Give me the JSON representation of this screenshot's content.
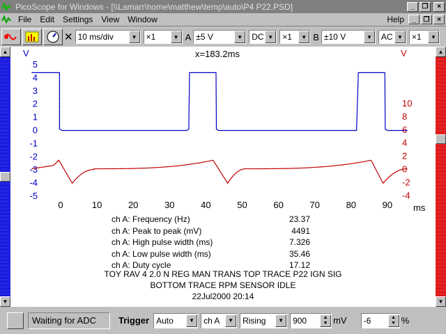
{
  "window": {
    "title": "PicoScope for Windows - [\\\\Lamarr\\home\\matthew\\temp\\auto\\P4  P22.PSD]",
    "minimize": "_",
    "restore": "❐",
    "close": "×"
  },
  "menu": {
    "file": "File",
    "edit": "Edit",
    "settings": "Settings",
    "view": "View",
    "window": "Window",
    "help": "Help"
  },
  "toolbar": {
    "timebase": "10 ms/div",
    "timebase_mult": "×1",
    "ch_a_label": "A",
    "ch_a_range": "±5 V",
    "ch_a_coupling": "DC",
    "ch_a_mult": "×1",
    "ch_b_label": "B",
    "ch_b_range": "±10 V",
    "ch_b_coupling": "AC",
    "ch_b_mult": "×1"
  },
  "plot": {
    "cursor_readout": "x=183.2ms",
    "left_unit": "V",
    "right_unit": "V",
    "x_unit": "ms",
    "left_ticks": [
      "5",
      "4",
      "3",
      "2",
      "1",
      "0",
      "-1",
      "-2",
      "-3",
      "-4",
      "-5"
    ],
    "right_ticks": [
      "10",
      "8",
      "6",
      "4",
      "2",
      "0",
      "-2",
      "-4"
    ],
    "x_ticks": [
      "0",
      "10",
      "20",
      "30",
      "40",
      "50",
      "60",
      "70",
      "80",
      "90"
    ]
  },
  "stats": [
    {
      "label": "ch A: Frequency (Hz)",
      "value": "23.37"
    },
    {
      "label": "ch A: Peak to peak (mV)",
      "value": "4491"
    },
    {
      "label": "ch A: High pulse width (ms)",
      "value": "7.326"
    },
    {
      "label": "ch A: Low pulse width (ms)",
      "value": "35.46"
    },
    {
      "label": "ch A: Duty cycle",
      "value": "17.12"
    }
  ],
  "notes": {
    "line1": "TOY RAV 4 2.0 N REG MAN TRANS  TOP TRACE  P22 IGN SIG",
    "line2": "BOTTOM TRACE RPM SENSOR IDLE",
    "line3": "22Jul2000  20:14"
  },
  "status": {
    "message": "Waiting for ADC",
    "trigger_label": "Trigger",
    "trigger_mode": "Auto",
    "trigger_channel": "ch A",
    "trigger_edge": "Rising",
    "trigger_level": "900",
    "trigger_level_unit": "mV",
    "pretrigger": "-6",
    "pretrigger_unit": "%"
  },
  "colors": {
    "channel_a": "#0000c0",
    "channel_b": "#c00000"
  }
}
